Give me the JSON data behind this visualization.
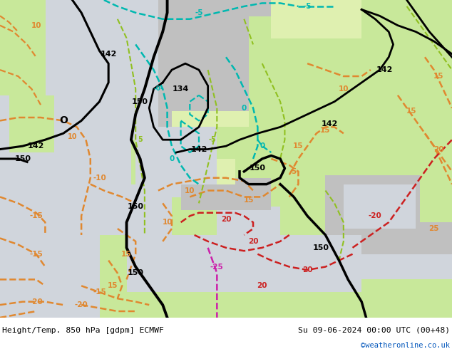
{
  "title_left": "Height/Temp. 850 hPa [gdpm] ECMWF",
  "title_right": "Su 09-06-2024 00:00 UTC (00+48)",
  "credit": "©weatheronline.co.uk",
  "fig_width": 6.34,
  "fig_height": 4.9,
  "dpi": 100,
  "color_sea": "#d0d5dc",
  "color_land_green": "#c8e89a",
  "color_land_lite": "#dff0b0",
  "color_mountain": "#c0c0c0",
  "color_white": "#ffffff",
  "color_black": "#000000",
  "color_orange": "#e08830",
  "color_lime": "#90c020",
  "color_cyan": "#00b8b0",
  "color_red": "#cc2020",
  "color_magenta": "#cc20aa",
  "color_footer_bg": "#ffffff",
  "color_credit": "#0055bb",
  "footer_left": "Height/Temp. 850 hPa [gdpm] ECMWF",
  "footer_right": "Su 09-06-2024 00:00 UTC (00+48)",
  "footer_credit": "©weatheronline.co.uk"
}
